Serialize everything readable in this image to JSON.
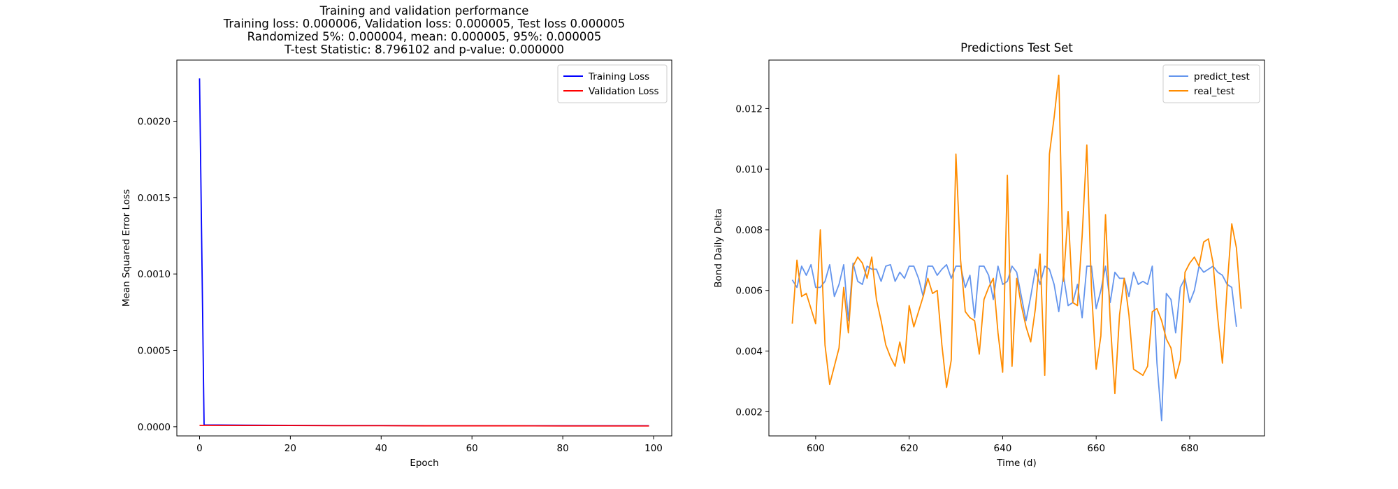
{
  "chart_data": [
    {
      "type": "line",
      "title_lines": [
        "Training and validation performance",
        "Training loss: 0.000006, Validation loss: 0.000005, Test loss 0.000005",
        "Randomized 5%: 0.000004, mean: 0.000005, 95%: 0.000005",
        "T-test Statistic: 8.796102 and p-value: 0.000000"
      ],
      "xlabel": "Epoch",
      "ylabel": "Mean Squared Error Loss",
      "xlim": [
        -5,
        104
      ],
      "ylim": [
        -6e-05,
        0.0024
      ],
      "xticks": [
        0,
        20,
        40,
        60,
        80,
        100
      ],
      "yticks": [
        0.0,
        0.0005,
        0.001,
        0.0015,
        0.002
      ],
      "xtick_labels": [
        "0",
        "20",
        "40",
        "60",
        "80",
        "100"
      ],
      "ytick_labels": [
        "0.0000",
        "0.0005",
        "0.0010",
        "0.0015",
        "0.0020"
      ],
      "legend_position": "top-right",
      "series": [
        {
          "name": "Training Loss",
          "color": "#0000ff",
          "x": [
            0,
            1,
            10,
            20,
            30,
            40,
            50,
            60,
            70,
            80,
            90,
            99
          ],
          "y": [
            0.00228,
            1.2e-05,
            1e-05,
            9e-06,
            8e-06,
            8e-06,
            7e-06,
            7e-06,
            6e-06,
            6e-06,
            6e-06,
            6e-06
          ]
        },
        {
          "name": "Validation Loss",
          "color": "#ff0000",
          "x": [
            0,
            10,
            20,
            30,
            40,
            50,
            60,
            70,
            80,
            90,
            99
          ],
          "y": [
            9e-06,
            8e-06,
            8e-06,
            7e-06,
            7e-06,
            6e-06,
            6e-06,
            6e-06,
            5e-06,
            5e-06,
            5e-06
          ]
        }
      ]
    },
    {
      "type": "line",
      "title_lines": [
        "Predictions Test Set"
      ],
      "xlabel": "Time (d)",
      "ylabel": "Bond Daily Delta",
      "xlim": [
        590,
        696
      ],
      "ylim": [
        0.0012,
        0.0136
      ],
      "xticks": [
        600,
        620,
        640,
        660,
        680
      ],
      "yticks": [
        0.002,
        0.004,
        0.006,
        0.008,
        0.01,
        0.012
      ],
      "xtick_labels": [
        "600",
        "620",
        "640",
        "660",
        "680"
      ],
      "ytick_labels": [
        "0.002",
        "0.004",
        "0.006",
        "0.008",
        "0.010",
        "0.012"
      ],
      "legend_position": "top-right",
      "x_start": 595,
      "series": [
        {
          "name": "predict_test",
          "color": "#6495ed",
          "values": [
            0.00635,
            0.0061,
            0.0068,
            0.0065,
            0.00685,
            0.0061,
            0.0061,
            0.0063,
            0.00685,
            0.0058,
            0.0062,
            0.00685,
            0.005,
            0.0069,
            0.0063,
            0.0062,
            0.0068,
            0.0067,
            0.0067,
            0.0063,
            0.0068,
            0.00685,
            0.0063,
            0.0066,
            0.0064,
            0.0068,
            0.0068,
            0.0064,
            0.0058,
            0.0068,
            0.0068,
            0.0065,
            0.0067,
            0.00685,
            0.0064,
            0.0068,
            0.0068,
            0.0061,
            0.0065,
            0.0051,
            0.0068,
            0.0068,
            0.0065,
            0.0057,
            0.0068,
            0.0062,
            0.0063,
            0.0068,
            0.0066,
            0.0058,
            0.005,
            0.0058,
            0.0067,
            0.0062,
            0.0068,
            0.0067,
            0.0062,
            0.0053,
            0.0065,
            0.0055,
            0.0056,
            0.0062,
            0.0051,
            0.0068,
            0.0068,
            0.0054,
            0.006,
            0.0068,
            0.0056,
            0.0066,
            0.0064,
            0.0064,
            0.0058,
            0.0066,
            0.0062,
            0.0063,
            0.0062,
            0.0068,
            0.0036,
            0.0017,
            0.0059,
            0.0057,
            0.0046,
            0.0061,
            0.0064,
            0.0056,
            0.006,
            0.0068,
            0.0066,
            0.0067,
            0.0068,
            0.0066,
            0.0065,
            0.0062,
            0.0061,
            0.0048
          ]
        },
        {
          "name": "real_test",
          "color": "#ff8c00",
          "values": [
            0.0049,
            0.007,
            0.0058,
            0.0059,
            0.0054,
            0.0049,
            0.008,
            0.0042,
            0.0029,
            0.0035,
            0.0041,
            0.0061,
            0.0046,
            0.0068,
            0.0071,
            0.0069,
            0.0064,
            0.0071,
            0.0057,
            0.005,
            0.0042,
            0.0038,
            0.0035,
            0.0043,
            0.0036,
            0.0055,
            0.0048,
            0.0053,
            0.0058,
            0.0064,
            0.0059,
            0.006,
            0.0042,
            0.0028,
            0.0037,
            0.0105,
            0.007,
            0.0053,
            0.0051,
            0.005,
            0.0039,
            0.0057,
            0.0061,
            0.0064,
            0.0046,
            0.0033,
            0.0098,
            0.0035,
            0.0064,
            0.0055,
            0.0048,
            0.0043,
            0.0054,
            0.0072,
            0.0032,
            0.0105,
            0.0117,
            0.0131,
            0.0063,
            0.0086,
            0.0056,
            0.0055,
            0.0078,
            0.0108,
            0.006,
            0.0034,
            0.0045,
            0.0085,
            0.005,
            0.0026,
            0.0052,
            0.0064,
            0.0052,
            0.0034,
            0.0033,
            0.0032,
            0.0035,
            0.0053,
            0.0054,
            0.005,
            0.0044,
            0.0041,
            0.0031,
            0.0037,
            0.0066,
            0.0069,
            0.0071,
            0.0068,
            0.0076,
            0.0077,
            0.0069,
            0.0051,
            0.0036,
            0.0061,
            0.0082,
            0.0074,
            0.0054
          ]
        }
      ]
    }
  ]
}
